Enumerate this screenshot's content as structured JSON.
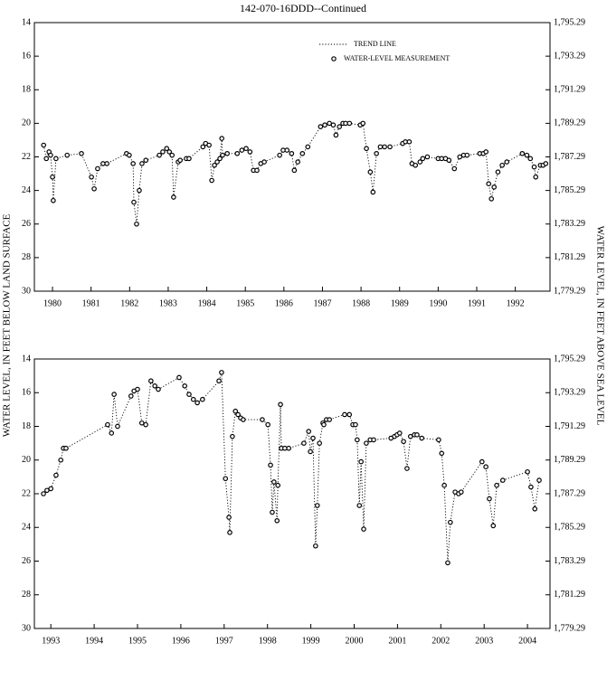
{
  "title": "142-070-16DDD--Continued",
  "ylabel": "WATER LEVEL, IN FEET BELOW LAND SURFACE",
  "y2label": "WATER LEVEL, IN FEET ABOVE SEA LEVEL",
  "chart_data": [
    {
      "type": "line",
      "legend_labels": [
        "TREND LINE",
        "WATER-LEVEL MEASUREMENT"
      ],
      "legend": "upper right",
      "xlim": [
        1979.53,
        1992.9
      ],
      "xticks": [
        1980,
        1981,
        1982,
        1983,
        1984,
        1985,
        1986,
        1987,
        1988,
        1989,
        1990,
        1991,
        1992
      ],
      "ylim": [
        30,
        14
      ],
      "yticks": [
        14,
        16,
        18,
        20,
        22,
        24,
        26,
        28,
        30
      ],
      "y2lim": [
        1779.29,
        1795.29
      ],
      "y2ticks": [
        {
          "value": 1795.29,
          "label": "1,795.29"
        },
        {
          "value": 1793.29,
          "label": "1,793.29"
        },
        {
          "value": 1791.29,
          "label": "1,791.29"
        },
        {
          "value": 1789.29,
          "label": "1,789.29"
        },
        {
          "value": 1787.29,
          "label": "1,787.29"
        },
        {
          "value": 1785.29,
          "label": "1,785.29"
        },
        {
          "value": 1783.29,
          "label": "1,783.29"
        },
        {
          "value": 1781.29,
          "label": "1,781.29"
        },
        {
          "value": 1779.29,
          "label": "1,779.29"
        }
      ],
      "color": "#000000",
      "x": [
        1979.77,
        1979.84,
        1979.91,
        1979.95,
        1980.0,
        1980.02,
        1980.09,
        1980.38,
        1980.75,
        1981.01,
        1981.08,
        1981.17,
        1981.31,
        1981.41,
        1981.92,
        1981.99,
        1982.09,
        1982.11,
        1982.18,
        1982.25,
        1982.32,
        1982.42,
        1982.77,
        1982.86,
        1982.96,
        1983.03,
        1983.1,
        1983.14,
        1983.26,
        1983.31,
        1983.47,
        1983.54,
        1983.9,
        1983.97,
        1984.06,
        1984.13,
        1984.2,
        1984.27,
        1984.34,
        1984.39,
        1984.41,
        1984.53,
        1984.79,
        1984.91,
        1985.02,
        1985.12,
        1985.21,
        1985.3,
        1985.4,
        1985.49,
        1985.89,
        1985.98,
        1986.08,
        1986.2,
        1986.27,
        1986.36,
        1986.48,
        1986.62,
        1986.95,
        1987.06,
        1987.18,
        1987.28,
        1987.35,
        1987.44,
        1987.53,
        1987.6,
        1987.7,
        1987.98,
        1988.05,
        1988.14,
        1988.24,
        1988.31,
        1988.4,
        1988.5,
        1988.61,
        1988.75,
        1989.08,
        1989.15,
        1989.25,
        1989.32,
        1989.41,
        1989.53,
        1989.6,
        1989.72,
        1990.0,
        1990.09,
        1990.19,
        1990.28,
        1990.42,
        1990.56,
        1990.66,
        1990.75,
        1991.08,
        1991.17,
        1991.24,
        1991.31,
        1991.38,
        1991.45,
        1991.55,
        1991.66,
        1991.78,
        1992.18,
        1992.3,
        1992.39,
        1992.49,
        1992.53,
        1992.65,
        1992.72,
        1992.79
      ],
      "values": [
        21.3,
        22.1,
        21.7,
        21.9,
        23.2,
        24.6,
        22.1,
        21.9,
        21.8,
        23.2,
        23.9,
        22.7,
        22.4,
        22.4,
        21.8,
        21.9,
        22.4,
        24.7,
        26.0,
        24.0,
        22.4,
        22.2,
        21.9,
        21.7,
        21.5,
        21.7,
        21.9,
        24.4,
        22.3,
        22.2,
        22.1,
        22.1,
        21.4,
        21.2,
        21.3,
        23.4,
        22.5,
        22.3,
        22.1,
        20.9,
        21.9,
        21.8,
        21.8,
        21.6,
        21.5,
        21.7,
        22.8,
        22.8,
        22.4,
        22.3,
        21.9,
        21.6,
        21.6,
        21.8,
        22.8,
        22.3,
        21.8,
        21.4,
        20.2,
        20.1,
        20.0,
        20.1,
        20.7,
        20.2,
        20.0,
        20.0,
        20.0,
        20.1,
        20.0,
        21.5,
        22.9,
        24.1,
        21.8,
        21.4,
        21.4,
        21.4,
        21.2,
        21.1,
        21.1,
        22.4,
        22.5,
        22.3,
        22.1,
        22.0,
        22.1,
        22.1,
        22.1,
        22.2,
        22.7,
        22.0,
        21.9,
        21.9,
        21.8,
        21.8,
        21.7,
        23.6,
        24.5,
        23.8,
        22.9,
        22.5,
        22.3,
        21.8,
        21.9,
        22.1,
        22.6,
        23.2,
        22.5,
        22.5,
        22.4
      ]
    },
    {
      "type": "line",
      "xlim": [
        1992.62,
        2004.52
      ],
      "xticks": [
        1993,
        1994,
        1995,
        1996,
        1997,
        1998,
        1999,
        2000,
        2001,
        2002,
        2003,
        2004
      ],
      "ylim": [
        30,
        14
      ],
      "yticks": [
        14,
        16,
        18,
        20,
        22,
        24,
        26,
        28,
        30
      ],
      "y2lim": [
        1779.29,
        1795.29
      ],
      "y2ticks": [
        {
          "value": 1795.29,
          "label": "1,795.29"
        },
        {
          "value": 1793.29,
          "label": "1,793.29"
        },
        {
          "value": 1791.29,
          "label": "1,791.29"
        },
        {
          "value": 1789.29,
          "label": "1,789.29"
        },
        {
          "value": 1787.29,
          "label": "1,787.29"
        },
        {
          "value": 1785.29,
          "label": "1,785.29"
        },
        {
          "value": 1783.29,
          "label": "1,783.29"
        },
        {
          "value": 1781.29,
          "label": "1,781.29"
        },
        {
          "value": 1779.29,
          "label": "1,779.29"
        }
      ],
      "color": "#000000",
      "x": [
        1992.83,
        1992.91,
        1993.0,
        1993.12,
        1993.23,
        1993.29,
        1993.35,
        1994.31,
        1994.4,
        1994.46,
        1994.54,
        1994.85,
        1994.92,
        1995.0,
        1995.1,
        1995.19,
        1995.31,
        1995.4,
        1995.48,
        1995.96,
        1996.09,
        1996.19,
        1996.29,
        1996.38,
        1996.5,
        1996.88,
        1996.94,
        1997.03,
        1997.11,
        1997.13,
        1997.19,
        1997.26,
        1997.32,
        1997.38,
        1997.44,
        1997.88,
        1998.01,
        1998.07,
        1998.11,
        1998.15,
        1998.22,
        1998.24,
        1998.3,
        1998.32,
        1998.4,
        1998.49,
        1998.84,
        1998.95,
        1998.99,
        1999.05,
        1999.11,
        1999.15,
        1999.2,
        1999.28,
        1999.3,
        1999.36,
        1999.43,
        1999.78,
        1999.89,
        1999.97,
        2000.03,
        2000.07,
        2000.12,
        2000.16,
        2000.22,
        2000.28,
        2000.37,
        2000.45,
        2000.85,
        2000.93,
        2000.99,
        2001.05,
        2001.14,
        2001.22,
        2001.3,
        2001.39,
        2001.45,
        2001.56,
        2001.95,
        2002.02,
        2002.08,
        2002.16,
        2002.22,
        2002.33,
        2002.41,
        2002.47,
        2002.95,
        2003.04,
        2003.12,
        2003.21,
        2003.29,
        2003.43,
        2004.0,
        2004.08,
        2004.17,
        2004.27
      ],
      "values": [
        22.0,
        21.8,
        21.7,
        20.9,
        20.0,
        19.3,
        19.3,
        17.9,
        18.4,
        16.1,
        18.0,
        16.2,
        15.9,
        15.8,
        17.8,
        17.9,
        15.3,
        15.6,
        15.8,
        15.1,
        15.6,
        16.1,
        16.4,
        16.6,
        16.4,
        15.3,
        14.8,
        21.1,
        23.4,
        24.3,
        18.6,
        17.1,
        17.3,
        17.5,
        17.6,
        17.6,
        17.9,
        20.3,
        23.1,
        21.3,
        23.6,
        21.5,
        16.7,
        19.3,
        19.3,
        19.3,
        19.0,
        18.3,
        19.5,
        18.7,
        25.1,
        22.7,
        19.0,
        17.8,
        17.9,
        17.6,
        17.6,
        17.3,
        17.3,
        17.9,
        17.9,
        18.8,
        22.7,
        20.1,
        24.1,
        19.0,
        18.8,
        18.8,
        18.7,
        18.6,
        18.5,
        18.4,
        18.9,
        20.5,
        18.6,
        18.5,
        18.5,
        18.7,
        18.8,
        19.6,
        21.5,
        26.1,
        23.7,
        21.9,
        22.0,
        21.9,
        20.1,
        20.4,
        22.3,
        23.9,
        21.5,
        21.2,
        20.7,
        21.6,
        22.9,
        21.2
      ]
    }
  ]
}
